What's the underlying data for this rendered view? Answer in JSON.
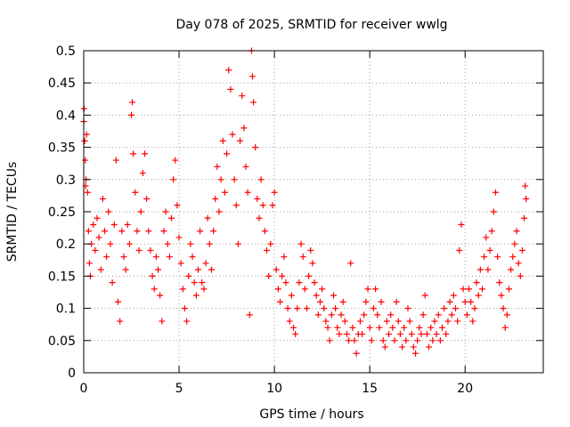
{
  "chart_data": {
    "type": "scatter",
    "title": "Day 078 of 2025, SRMTID for receiver wwlg",
    "xlabel": "GPS time / hours",
    "ylabel": "SRMTID / TECUs",
    "xlim": [
      0,
      24.1
    ],
    "ylim": [
      0,
      0.5
    ],
    "xticks": [
      0,
      5,
      10,
      15,
      20
    ],
    "xtick_labels": [
      "0",
      "5",
      "10",
      "15",
      "20"
    ],
    "yticks": [
      0,
      0.05,
      0.1,
      0.15,
      0.2,
      0.25,
      0.3,
      0.35,
      0.4,
      0.45,
      0.5
    ],
    "ytick_labels": [
      "0",
      "0.05",
      "0.1",
      "0.15",
      "0.2",
      "0.25",
      "0.3",
      "0.35",
      "0.4",
      "0.45",
      "0.5"
    ],
    "grid": true,
    "marker": "+",
    "marker_color": "#ff0000",
    "series": [
      {
        "name": "SRMTID",
        "points": [
          [
            0.0,
            0.39
          ],
          [
            0.02,
            0.41
          ],
          [
            0.05,
            0.36
          ],
          [
            0.08,
            0.33
          ],
          [
            0.1,
            0.29
          ],
          [
            0.12,
            0.3
          ],
          [
            0.15,
            0.37
          ],
          [
            0.2,
            0.28
          ],
          [
            0.25,
            0.22
          ],
          [
            0.3,
            0.17
          ],
          [
            0.35,
            0.15
          ],
          [
            0.4,
            0.2
          ],
          [
            0.5,
            0.23
          ],
          [
            0.6,
            0.19
          ],
          [
            0.7,
            0.24
          ],
          [
            0.8,
            0.21
          ],
          [
            0.9,
            0.16
          ],
          [
            1.0,
            0.27
          ],
          [
            1.1,
            0.22
          ],
          [
            1.2,
            0.18
          ],
          [
            1.3,
            0.25
          ],
          [
            1.4,
            0.2
          ],
          [
            1.5,
            0.14
          ],
          [
            1.6,
            0.23
          ],
          [
            1.7,
            0.33
          ],
          [
            1.8,
            0.11
          ],
          [
            1.9,
            0.08
          ],
          [
            2.0,
            0.22
          ],
          [
            2.1,
            0.18
          ],
          [
            2.2,
            0.16
          ],
          [
            2.3,
            0.23
          ],
          [
            2.4,
            0.2
          ],
          [
            2.5,
            0.4
          ],
          [
            2.55,
            0.42
          ],
          [
            2.6,
            0.34
          ],
          [
            2.7,
            0.28
          ],
          [
            2.8,
            0.22
          ],
          [
            2.9,
            0.19
          ],
          [
            3.0,
            0.25
          ],
          [
            3.1,
            0.31
          ],
          [
            3.2,
            0.34
          ],
          [
            3.3,
            0.27
          ],
          [
            3.4,
            0.22
          ],
          [
            3.5,
            0.19
          ],
          [
            3.6,
            0.15
          ],
          [
            3.7,
            0.13
          ],
          [
            3.8,
            0.18
          ],
          [
            3.9,
            0.16
          ],
          [
            4.0,
            0.12
          ],
          [
            4.1,
            0.08
          ],
          [
            4.2,
            0.22
          ],
          [
            4.3,
            0.25
          ],
          [
            4.4,
            0.2
          ],
          [
            4.5,
            0.18
          ],
          [
            4.6,
            0.24
          ],
          [
            4.7,
            0.3
          ],
          [
            4.8,
            0.33
          ],
          [
            4.9,
            0.26
          ],
          [
            5.0,
            0.21
          ],
          [
            5.1,
            0.17
          ],
          [
            5.2,
            0.13
          ],
          [
            5.3,
            0.1
          ],
          [
            5.4,
            0.08
          ],
          [
            5.5,
            0.15
          ],
          [
            5.6,
            0.2
          ],
          [
            5.7,
            0.18
          ],
          [
            5.8,
            0.14
          ],
          [
            5.9,
            0.12
          ],
          [
            6.0,
            0.16
          ],
          [
            6.1,
            0.22
          ],
          [
            6.2,
            0.14
          ],
          [
            6.3,
            0.13
          ],
          [
            6.4,
            0.17
          ],
          [
            6.5,
            0.24
          ],
          [
            6.6,
            0.2
          ],
          [
            6.7,
            0.16
          ],
          [
            6.8,
            0.22
          ],
          [
            6.9,
            0.27
          ],
          [
            7.0,
            0.32
          ],
          [
            7.1,
            0.25
          ],
          [
            7.2,
            0.3
          ],
          [
            7.3,
            0.36
          ],
          [
            7.4,
            0.28
          ],
          [
            7.5,
            0.34
          ],
          [
            7.6,
            0.47
          ],
          [
            7.7,
            0.44
          ],
          [
            7.8,
            0.37
          ],
          [
            7.9,
            0.3
          ],
          [
            8.0,
            0.26
          ],
          [
            8.1,
            0.2
          ],
          [
            8.2,
            0.36
          ],
          [
            8.3,
            0.43
          ],
          [
            8.4,
            0.38
          ],
          [
            8.5,
            0.32
          ],
          [
            8.6,
            0.28
          ],
          [
            8.7,
            0.09
          ],
          [
            8.8,
            0.5
          ],
          [
            8.85,
            0.46
          ],
          [
            8.9,
            0.42
          ],
          [
            9.0,
            0.35
          ],
          [
            9.1,
            0.27
          ],
          [
            9.2,
            0.24
          ],
          [
            9.3,
            0.3
          ],
          [
            9.4,
            0.26
          ],
          [
            9.5,
            0.22
          ],
          [
            9.6,
            0.19
          ],
          [
            9.7,
            0.15
          ],
          [
            9.8,
            0.2
          ],
          [
            9.9,
            0.26
          ],
          [
            10.0,
            0.28
          ],
          [
            10.1,
            0.16
          ],
          [
            10.2,
            0.13
          ],
          [
            10.3,
            0.11
          ],
          [
            10.4,
            0.15
          ],
          [
            10.5,
            0.18
          ],
          [
            10.6,
            0.14
          ],
          [
            10.7,
            0.1
          ],
          [
            10.8,
            0.08
          ],
          [
            10.9,
            0.12
          ],
          [
            11.0,
            0.07
          ],
          [
            11.1,
            0.06
          ],
          [
            11.2,
            0.1
          ],
          [
            11.3,
            0.14
          ],
          [
            11.4,
            0.2
          ],
          [
            11.5,
            0.18
          ],
          [
            11.6,
            0.13
          ],
          [
            11.7,
            0.1
          ],
          [
            11.8,
            0.15
          ],
          [
            11.9,
            0.19
          ],
          [
            12.0,
            0.17
          ],
          [
            12.1,
            0.14
          ],
          [
            12.2,
            0.12
          ],
          [
            12.3,
            0.09
          ],
          [
            12.4,
            0.11
          ],
          [
            12.5,
            0.13
          ],
          [
            12.6,
            0.1
          ],
          [
            12.7,
            0.08
          ],
          [
            12.8,
            0.07
          ],
          [
            12.9,
            0.05
          ],
          [
            13.0,
            0.09
          ],
          [
            13.1,
            0.12
          ],
          [
            13.2,
            0.1
          ],
          [
            13.3,
            0.07
          ],
          [
            13.4,
            0.06
          ],
          [
            13.5,
            0.09
          ],
          [
            13.6,
            0.11
          ],
          [
            13.7,
            0.08
          ],
          [
            13.8,
            0.06
          ],
          [
            13.9,
            0.05
          ],
          [
            14.0,
            0.17
          ],
          [
            14.1,
            0.07
          ],
          [
            14.2,
            0.05
          ],
          [
            14.3,
            0.03
          ],
          [
            14.4,
            0.06
          ],
          [
            14.5,
            0.08
          ],
          [
            14.6,
            0.06
          ],
          [
            14.7,
            0.09
          ],
          [
            14.8,
            0.11
          ],
          [
            14.9,
            0.13
          ],
          [
            15.0,
            0.07
          ],
          [
            15.1,
            0.05
          ],
          [
            15.2,
            0.1
          ],
          [
            15.3,
            0.13
          ],
          [
            15.4,
            0.09
          ],
          [
            15.5,
            0.07
          ],
          [
            15.6,
            0.11
          ],
          [
            15.7,
            0.05
          ],
          [
            15.8,
            0.04
          ],
          [
            15.9,
            0.08
          ],
          [
            16.0,
            0.06
          ],
          [
            16.1,
            0.09
          ],
          [
            16.2,
            0.07
          ],
          [
            16.3,
            0.05
          ],
          [
            16.4,
            0.11
          ],
          [
            16.5,
            0.08
          ],
          [
            16.6,
            0.06
          ],
          [
            16.7,
            0.04
          ],
          [
            16.8,
            0.07
          ],
          [
            16.9,
            0.05
          ],
          [
            17.0,
            0.1
          ],
          [
            17.1,
            0.08
          ],
          [
            17.2,
            0.06
          ],
          [
            17.3,
            0.04
          ],
          [
            17.4,
            0.03
          ],
          [
            17.5,
            0.05
          ],
          [
            17.6,
            0.07
          ],
          [
            17.7,
            0.06
          ],
          [
            17.8,
            0.09
          ],
          [
            17.9,
            0.12
          ],
          [
            18.0,
            0.06
          ],
          [
            18.1,
            0.04
          ],
          [
            18.2,
            0.07
          ],
          [
            18.3,
            0.05
          ],
          [
            18.4,
            0.08
          ],
          [
            18.5,
            0.06
          ],
          [
            18.6,
            0.09
          ],
          [
            18.7,
            0.05
          ],
          [
            18.8,
            0.07
          ],
          [
            18.9,
            0.1
          ],
          [
            19.0,
            0.06
          ],
          [
            19.1,
            0.08
          ],
          [
            19.2,
            0.11
          ],
          [
            19.3,
            0.09
          ],
          [
            19.4,
            0.12
          ],
          [
            19.5,
            0.1
          ],
          [
            19.6,
            0.08
          ],
          [
            19.7,
            0.19
          ],
          [
            19.8,
            0.23
          ],
          [
            19.9,
            0.13
          ],
          [
            20.0,
            0.11
          ],
          [
            20.1,
            0.09
          ],
          [
            20.2,
            0.13
          ],
          [
            20.3,
            0.11
          ],
          [
            20.4,
            0.08
          ],
          [
            20.5,
            0.1
          ],
          [
            20.6,
            0.14
          ],
          [
            20.7,
            0.12
          ],
          [
            20.8,
            0.16
          ],
          [
            20.9,
            0.13
          ],
          [
            21.0,
            0.18
          ],
          [
            21.1,
            0.21
          ],
          [
            21.2,
            0.16
          ],
          [
            21.3,
            0.19
          ],
          [
            21.4,
            0.22
          ],
          [
            21.5,
            0.25
          ],
          [
            21.6,
            0.28
          ],
          [
            21.7,
            0.18
          ],
          [
            21.8,
            0.14
          ],
          [
            21.9,
            0.12
          ],
          [
            22.0,
            0.1
          ],
          [
            22.1,
            0.07
          ],
          [
            22.2,
            0.09
          ],
          [
            22.3,
            0.13
          ],
          [
            22.4,
            0.16
          ],
          [
            22.5,
            0.18
          ],
          [
            22.6,
            0.2
          ],
          [
            22.7,
            0.22
          ],
          [
            22.8,
            0.17
          ],
          [
            22.9,
            0.15
          ],
          [
            23.0,
            0.19
          ],
          [
            23.1,
            0.24
          ],
          [
            23.15,
            0.29
          ],
          [
            23.2,
            0.27
          ]
        ]
      }
    ]
  }
}
